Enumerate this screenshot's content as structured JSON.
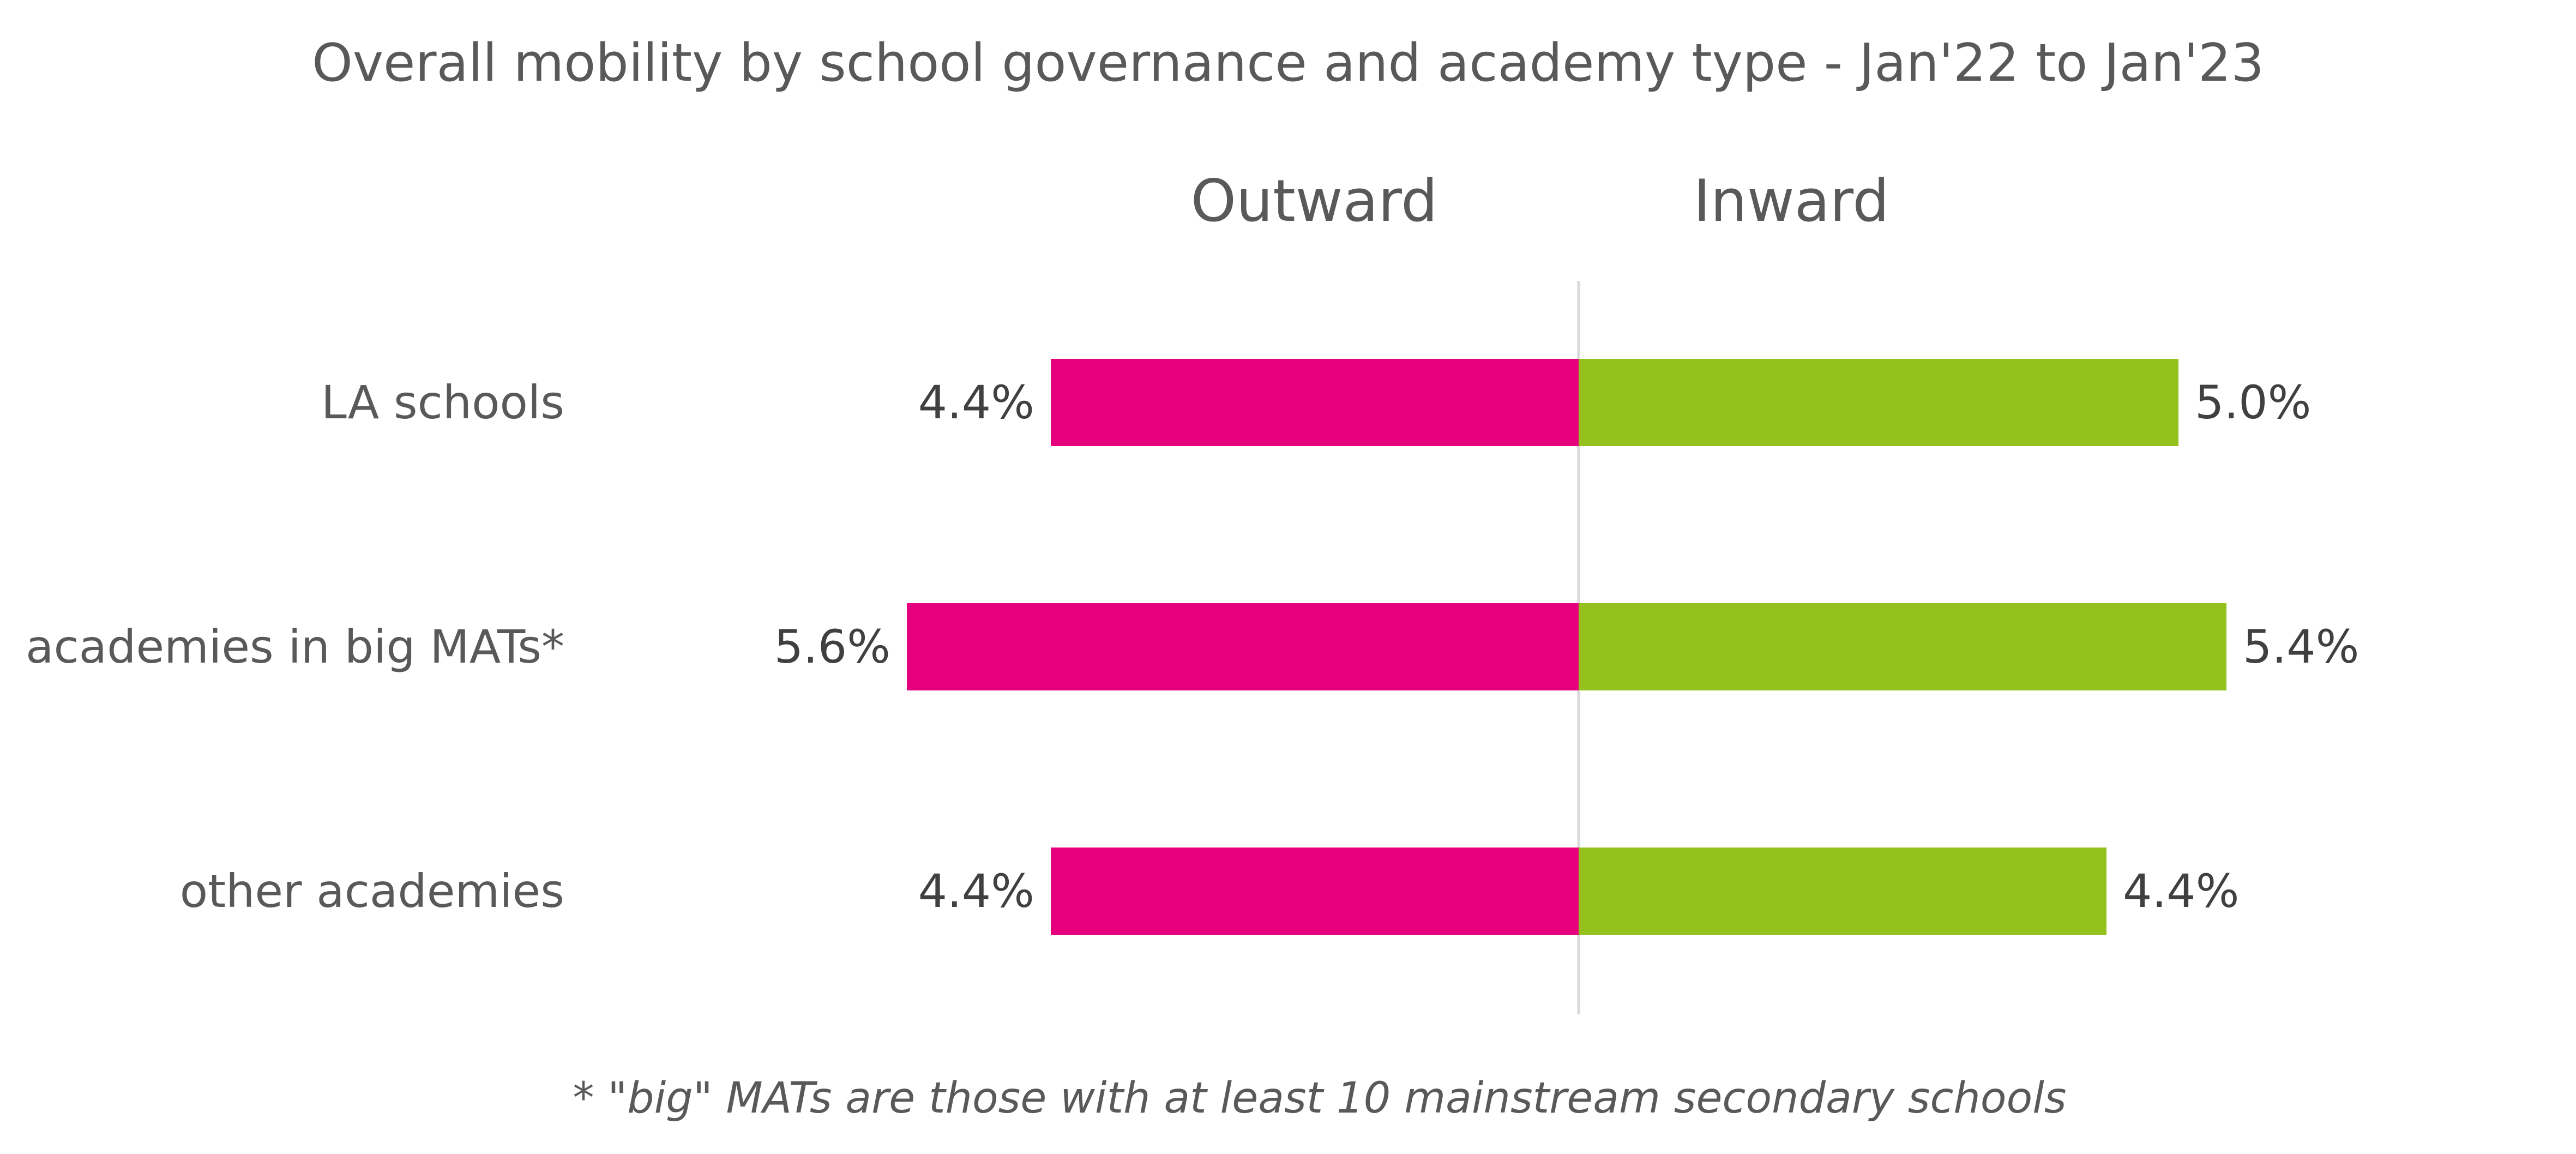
{
  "chart_data": {
    "type": "bar",
    "orientation": "horizontal-diverging",
    "title": "Overall mobility by school governance and academy type - Jan'22 to Jan'23",
    "categories": [
      "LA schools",
      "academies in big MATs*",
      "other academies"
    ],
    "series": [
      {
        "name": "Outward",
        "direction": "left",
        "color": "#E6007E",
        "values": [
          4.4,
          5.6,
          4.4
        ],
        "labels": [
          "4.4%",
          "5.6%",
          "4.4%"
        ]
      },
      {
        "name": "Inward",
        "direction": "right",
        "color": "#95C11F",
        "values": [
          5.0,
          5.4,
          4.4
        ],
        "labels": [
          "5.0%",
          "5.4%",
          "4.4%"
        ]
      }
    ],
    "value_unit": "%",
    "footnote": "* \"big\" MATs are those with at least 10 mainstream secondary schools",
    "grid": false,
    "legend": "column headings above bars"
  },
  "colors": {
    "axis": "#D9D9D9",
    "text": "#595959"
  }
}
